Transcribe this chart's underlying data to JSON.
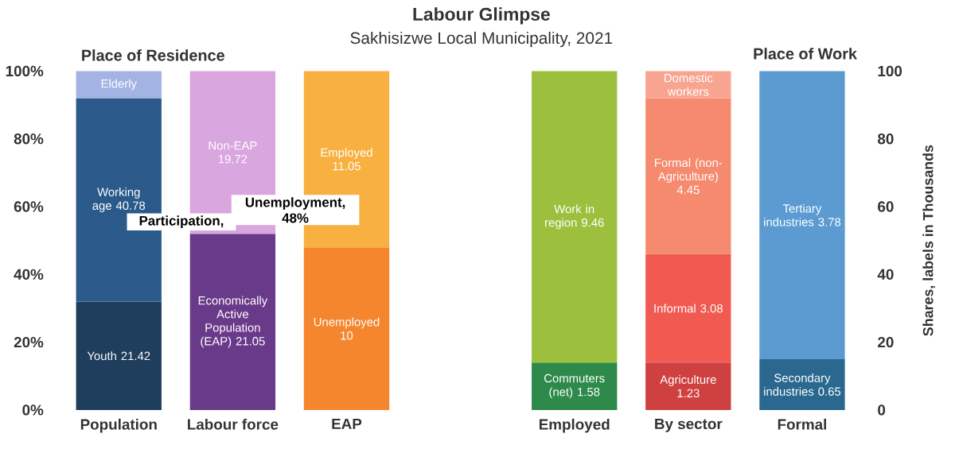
{
  "chart_data": {
    "type": "bar",
    "stacked": true,
    "title": "Labour Glimpse",
    "subtitle": "Sakhisizwe Local Municipality, 2021",
    "y2label": "Shares, labels in Thousands",
    "annotations": [
      "Place of Residence",
      "Place of Work",
      "Participation,",
      "Unemployment, 48%",
      "Youth 21.42",
      "Working age 40.78",
      "Elderly",
      "Economically Active Population (EAP) 21.05",
      "Non-EAP 19.72",
      "Unemployed 10",
      "Employed 11.05",
      "Commuters (net) 1.58",
      "Work in region 9.46",
      "Agriculture 1.23",
      "Informal 3.08",
      "Formal (non-Agriculture) 4.45",
      "Domestic workers",
      "Secondary industries 0.65",
      "Tertiary industries 3.78"
    ],
    "categories": [
      "Population",
      "Labour force",
      "EAP",
      null,
      "Employed",
      "By sector",
      "Formal"
    ],
    "ylim": [
      0,
      100
    ],
    "yticks": [
      {
        "value": 0,
        "label": "0%"
      },
      {
        "value": 20,
        "label": "20%"
      },
      {
        "value": 40,
        "label": "40%"
      },
      {
        "value": 60,
        "label": "60%"
      },
      {
        "value": 80,
        "label": "80%"
      },
      {
        "value": 100,
        "label": "100%"
      }
    ],
    "y2lim": [
      0,
      100
    ],
    "y2ticks": [
      0,
      20,
      40,
      60,
      80,
      100
    ],
    "series": [
      {
        "values": [
          32,
          52,
          48,
          null,
          14,
          14,
          15
        ],
        "colors": [
          "#1f3d5c",
          "#6a3a8a",
          "#f5862e",
          "#ffffff",
          "#2e8a4a",
          "#cf4040",
          "#2a6890"
        ]
      },
      {
        "values": [
          60,
          48,
          52,
          null,
          86,
          32,
          85
        ],
        "colors": [
          "#2b5a8a",
          "#d9a6df",
          "#f8b040",
          "#ffffff",
          "#9cc03e",
          "#f05a50",
          "#5b9bd2"
        ]
      },
      {
        "values": [
          8,
          null,
          null,
          null,
          null,
          46,
          null
        ],
        "colors": [
          "#a3b3e3",
          "#ffffff",
          "#ffffff",
          "#ffffff",
          "#ffffff",
          "#f58a6e",
          "#ffffff"
        ]
      },
      {
        "values": [
          null,
          null,
          null,
          null,
          null,
          8,
          null
        ],
        "colors": [
          "#ffffff",
          "#ffffff",
          "#ffffff",
          "#ffffff",
          "#ffffff",
          "#f7a590",
          "#ffffff"
        ]
      }
    ]
  }
}
